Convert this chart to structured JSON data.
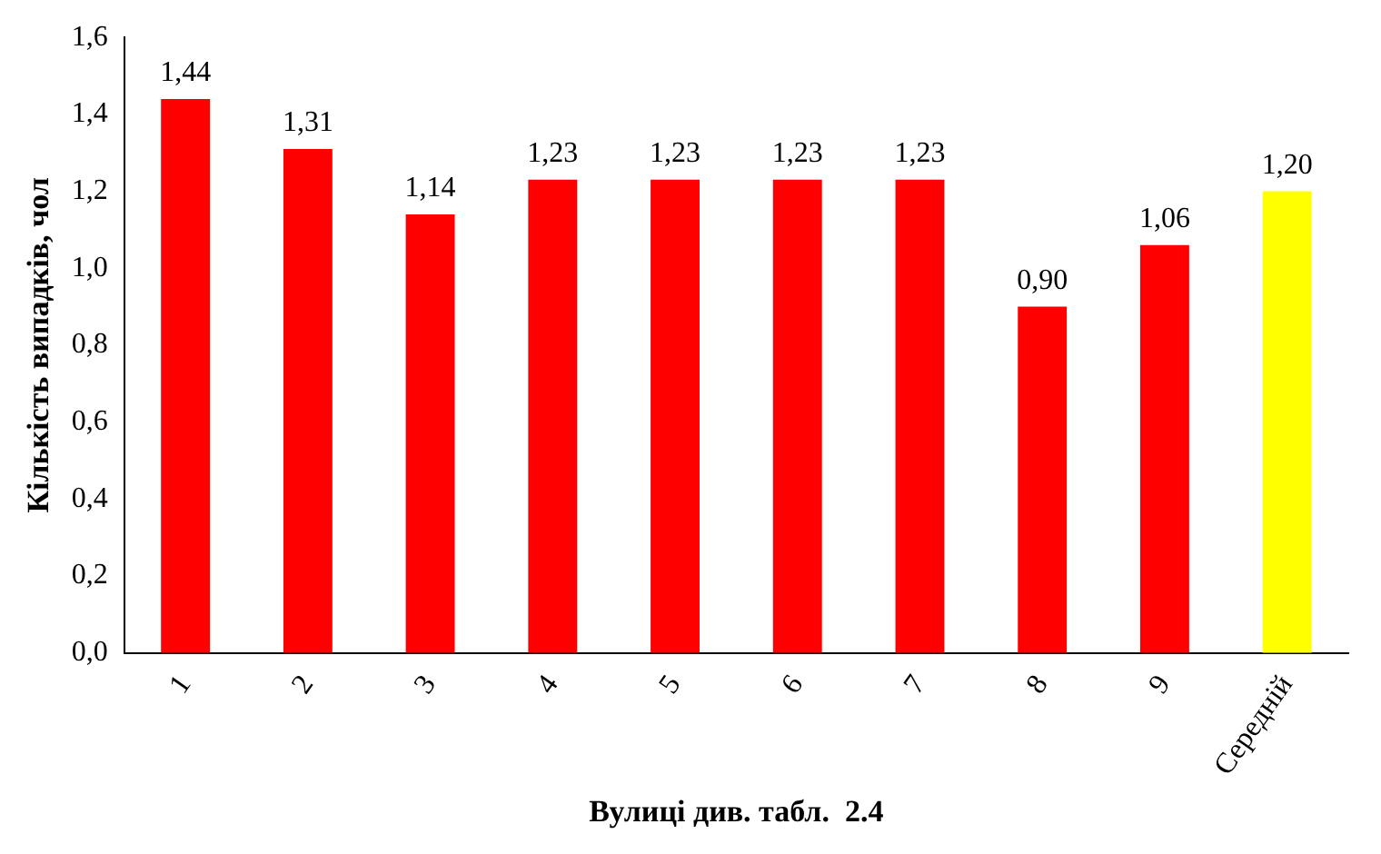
{
  "chart_data": {
    "type": "bar",
    "xlabel": "Вулиці див. табл.  2.4",
    "ylabel": "Кількість випадків, чол",
    "categories": [
      "1",
      "2",
      "3",
      "4",
      "5",
      "6",
      "7",
      "8",
      "9",
      "Середній"
    ],
    "values": [
      1.44,
      1.31,
      1.14,
      1.23,
      1.23,
      1.23,
      1.23,
      0.9,
      1.06,
      1.2
    ],
    "colors": [
      "#ff0000",
      "#ff0000",
      "#ff0000",
      "#ff0000",
      "#ff0000",
      "#ff0000",
      "#ff0000",
      "#ff0000",
      "#ff0000",
      "#ffff00"
    ],
    "value_labels": [
      "1,44",
      "1,31",
      "1,14",
      "1,23",
      "1,23",
      "1,23",
      "1,23",
      "0,90",
      "1,06",
      "1,20"
    ],
    "ylim": [
      0,
      1.6
    ],
    "yticks": [
      {
        "value": 0,
        "label": "0,0"
      },
      {
        "value": 0.2,
        "label": "0,2"
      },
      {
        "value": 0.4,
        "label": "0,4"
      },
      {
        "value": 0.6,
        "label": "0,6"
      },
      {
        "value": 0.8,
        "label": "0,8"
      },
      {
        "value": 1.0,
        "label": "1,0"
      },
      {
        "value": 1.2,
        "label": "1,2"
      },
      {
        "value": 1.4,
        "label": "1,4"
      },
      {
        "value": 1.6,
        "label": "1,6"
      }
    ],
    "grid": false,
    "legend": false
  }
}
